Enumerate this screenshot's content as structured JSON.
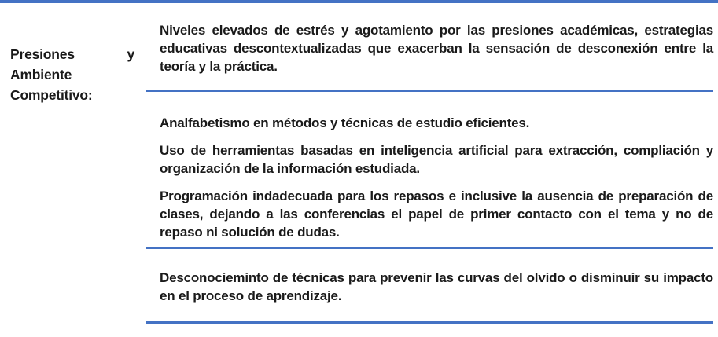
{
  "table": {
    "row_header": {
      "label": "Presiones y Ambiente Competitivo:"
    },
    "rows": [
      {
        "paragraphs": [
          "Niveles elevados de estrés y agotamiento por las presiones académicas, estrategias educativas descontextualizadas que exacerban la sensación de desconexión entre la teoría y la práctica."
        ]
      },
      {
        "paragraphs": [
          "Analfabetismo en métodos y técnicas de estudio eficientes.",
          "Uso de herramientas basadas en inteligencia artificial para extracción, compliación y organización de la información estudiada.",
          "Programación indadecuada para los repasos e inclusive la ausencia de preparación de clases, dejando a las conferencias el papel de primer contacto con el tema y no de repaso ni solución de dudas."
        ]
      },
      {
        "paragraphs": [
          "Desconocieminto de técnicas para prevenir las curvas del olvido o disminuir su impacto en el proceso de aprendizaje."
        ]
      }
    ],
    "colors": {
      "rule_blue": "#4472C4",
      "text": "#1a1a1a",
      "background": "#ffffff"
    }
  }
}
